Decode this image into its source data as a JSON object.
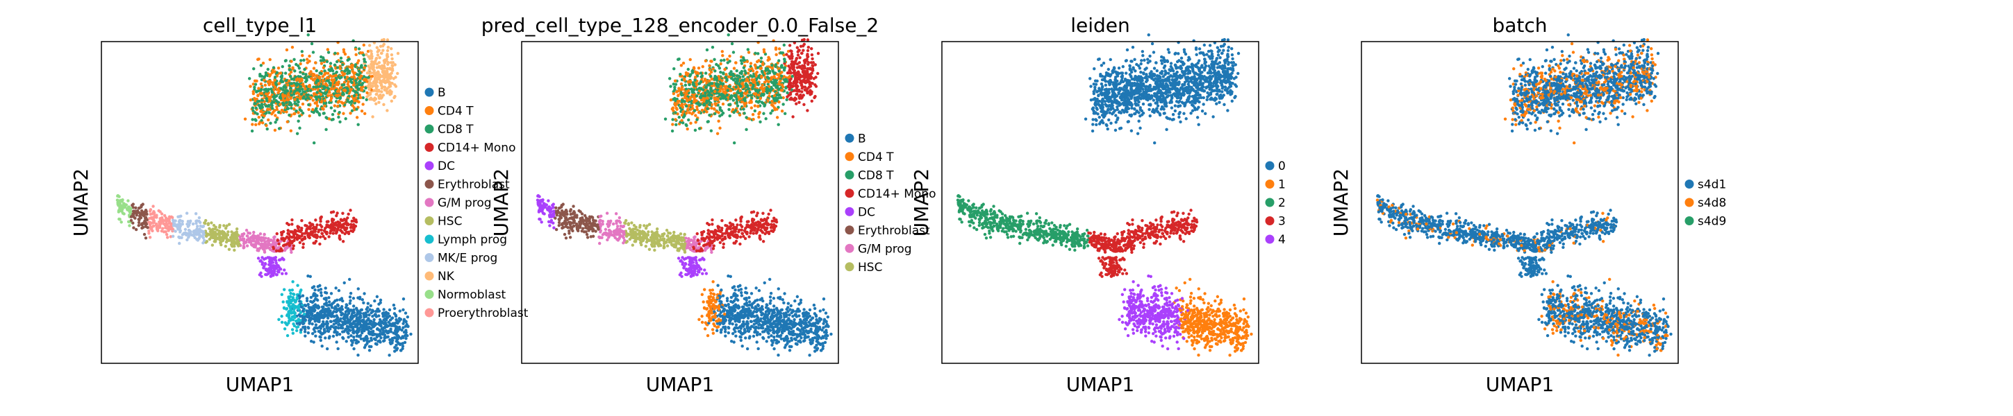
{
  "chart_data": [
    {
      "type": "scatter",
      "title": "cell_type_l1",
      "xlabel": "UMAP1",
      "ylabel": "UMAP2",
      "grid": false,
      "legend_position": "right",
      "legend": [
        {
          "label": "B",
          "color": "#1f77b4"
        },
        {
          "label": "CD4 T",
          "color": "#ff7f0e"
        },
        {
          "label": "CD8 T",
          "color": "#279e68"
        },
        {
          "label": "CD14+ Mono",
          "color": "#d62728"
        },
        {
          "label": "DC",
          "color": "#aa40fc"
        },
        {
          "label": "Erythroblast",
          "color": "#8c564b"
        },
        {
          "label": "G/M prog",
          "color": "#e377c2"
        },
        {
          "label": "HSC",
          "color": "#b5bd61"
        },
        {
          "label": "Lymph prog",
          "color": "#17becf"
        },
        {
          "label": "MK/E prog",
          "color": "#aec7e8"
        },
        {
          "label": "NK",
          "color": "#ffbb78"
        },
        {
          "label": "Normoblast",
          "color": "#98df8a"
        },
        {
          "label": "Proerythroblast",
          "color": "#ff9896"
        }
      ]
    },
    {
      "type": "scatter",
      "title": "pred_cell_type_128_encoder_0.0_False_2",
      "xlabel": "UMAP1",
      "ylabel": "UMAP2",
      "grid": false,
      "legend_position": "right",
      "legend": [
        {
          "label": "B",
          "color": "#1f77b4"
        },
        {
          "label": "CD4 T",
          "color": "#ff7f0e"
        },
        {
          "label": "CD8 T",
          "color": "#279e68"
        },
        {
          "label": "CD14+ Mono",
          "color": "#d62728"
        },
        {
          "label": "DC",
          "color": "#aa40fc"
        },
        {
          "label": "Erythroblast",
          "color": "#8c564b"
        },
        {
          "label": "G/M prog",
          "color": "#e377c2"
        },
        {
          "label": "HSC",
          "color": "#b5bd61"
        }
      ]
    },
    {
      "type": "scatter",
      "title": "leiden",
      "xlabel": "UMAP1",
      "ylabel": "UMAP2",
      "grid": false,
      "legend_position": "right",
      "legend": [
        {
          "label": "0",
          "color": "#1f77b4"
        },
        {
          "label": "1",
          "color": "#ff7f0e"
        },
        {
          "label": "2",
          "color": "#279e68"
        },
        {
          "label": "3",
          "color": "#d62728"
        },
        {
          "label": "4",
          "color": "#aa40fc"
        }
      ]
    },
    {
      "type": "scatter",
      "title": "batch",
      "xlabel": "UMAP1",
      "ylabel": "UMAP2",
      "grid": false,
      "legend_position": "right",
      "legend": [
        {
          "label": "s4d1",
          "color": "#1f77b4"
        },
        {
          "label": "s4d8",
          "color": "#ff7f0e"
        },
        {
          "label": "s4d9",
          "color": "#279e68"
        }
      ]
    }
  ]
}
